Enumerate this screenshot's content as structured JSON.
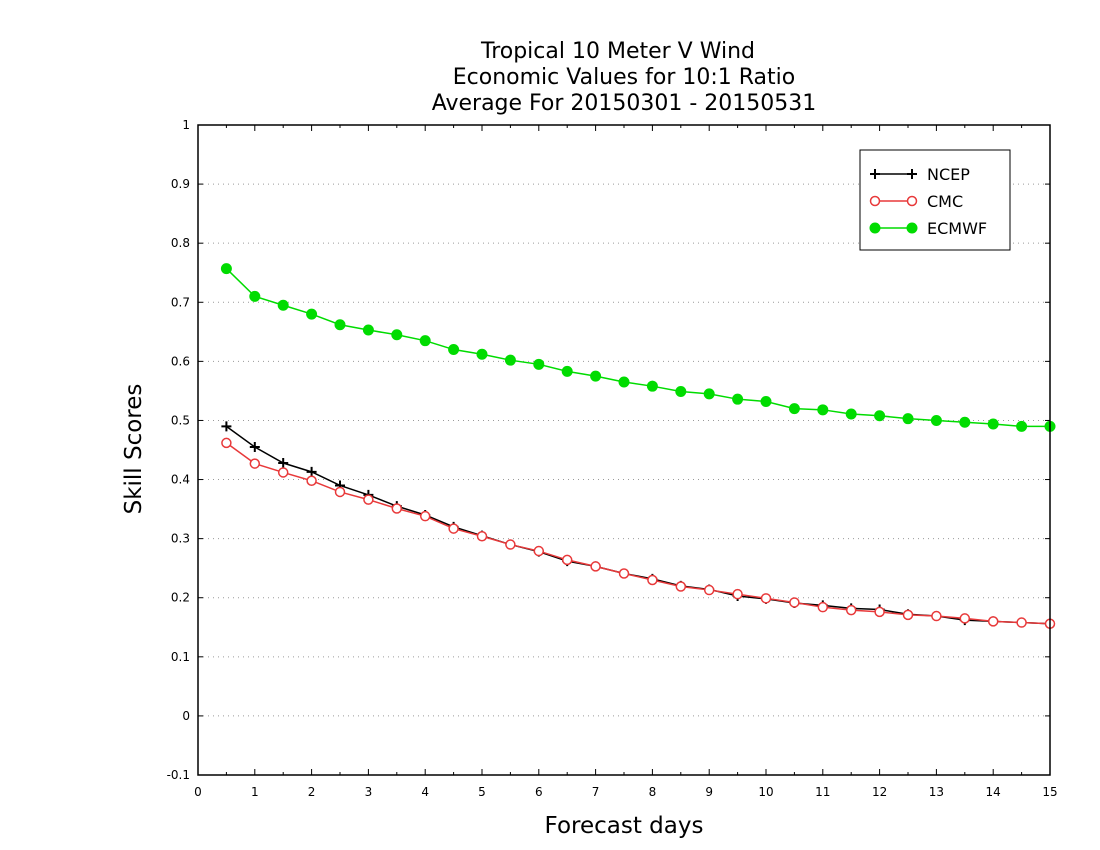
{
  "chart_data": {
    "type": "line",
    "title": [
      "Tropical 10 Meter V Wind",
      "Economic Values for 10:1 Ratio",
      "Average For 20150301 - 20150531"
    ],
    "xlabel": "Forecast days",
    "ylabel": "Skill Scores",
    "xlim": [
      0,
      15
    ],
    "ylim": [
      -0.1,
      1
    ],
    "xticks": [
      0,
      1,
      2,
      3,
      4,
      5,
      6,
      7,
      8,
      9,
      10,
      11,
      12,
      13,
      14,
      15
    ],
    "yticks": [
      -0.1,
      0,
      0.1,
      0.2,
      0.3,
      0.4,
      0.5,
      0.6,
      0.7,
      0.8,
      0.9,
      1
    ],
    "ytick_labels": [
      "-0.1",
      "0",
      "0.1",
      "0.2",
      "0.3",
      "0.4",
      "0.5",
      "0.6",
      "0.7",
      "0.8",
      "0.9",
      "1"
    ],
    "grid": "horizontal dotted",
    "legend_position": "top-right",
    "x": [
      0.5,
      1,
      1.5,
      2,
      2.5,
      3,
      3.5,
      4,
      4.5,
      5,
      5.5,
      6,
      6.5,
      7,
      7.5,
      8,
      8.5,
      9,
      9.5,
      10,
      10.5,
      11,
      11.5,
      12,
      12.5,
      13,
      13.5,
      14,
      14.5,
      15
    ],
    "series": [
      {
        "name": "NCEP",
        "color": "#000000",
        "marker": "plus",
        "values": [
          0.49,
          0.455,
          0.428,
          0.413,
          0.39,
          0.374,
          0.355,
          0.34,
          0.32,
          0.305,
          0.29,
          0.278,
          0.262,
          0.253,
          0.241,
          0.232,
          0.22,
          0.214,
          0.203,
          0.198,
          0.191,
          0.187,
          0.182,
          0.18,
          0.172,
          0.169,
          0.162,
          0.16,
          0.158,
          0.156
        ]
      },
      {
        "name": "CMC",
        "color": "#e8393a",
        "marker": "open-circle",
        "values": [
          0.462,
          0.427,
          0.412,
          0.398,
          0.379,
          0.366,
          0.351,
          0.338,
          0.317,
          0.304,
          0.29,
          0.279,
          0.264,
          0.253,
          0.241,
          0.23,
          0.219,
          0.213,
          0.206,
          0.199,
          0.192,
          0.184,
          0.179,
          0.176,
          0.171,
          0.169,
          0.165,
          0.16,
          0.158,
          0.156
        ]
      },
      {
        "name": "ECMWF",
        "color": "#00dc00",
        "marker": "filled-circle",
        "values": [
          0.757,
          0.71,
          0.695,
          0.68,
          0.662,
          0.653,
          0.645,
          0.635,
          0.62,
          0.612,
          0.602,
          0.595,
          0.583,
          0.575,
          0.565,
          0.558,
          0.549,
          0.545,
          0.536,
          0.532,
          0.52,
          0.518,
          0.511,
          0.508,
          0.503,
          0.5,
          0.497,
          0.494,
          0.49,
          0.49
        ]
      }
    ]
  }
}
